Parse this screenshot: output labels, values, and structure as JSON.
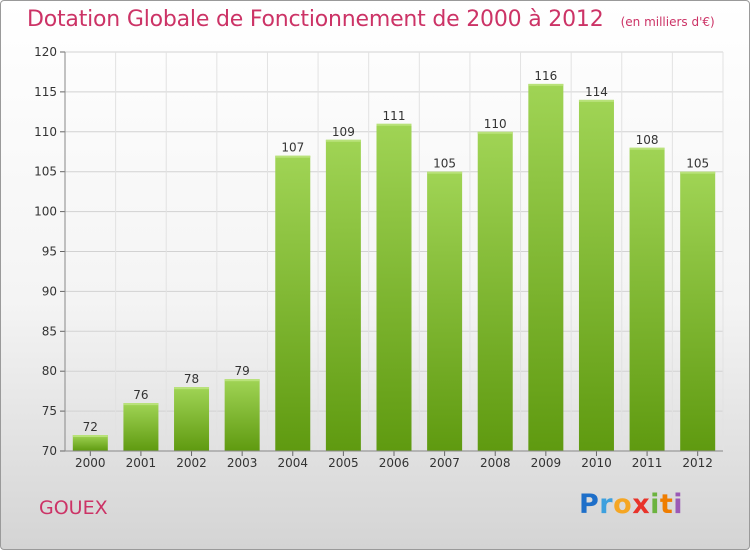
{
  "header": {
    "title": "Dotation Globale de Fonctionnement de 2000 à 2012",
    "unit": "(en milliers d'€)"
  },
  "footer": {
    "commune": "GOUEX",
    "logo_letters": [
      "P",
      "r",
      "o",
      "x",
      "i",
      "t",
      "i"
    ]
  },
  "colors": {
    "bar_light": "#a0d455",
    "bar_dark": "#5f9a10",
    "title": "#cc3366"
  },
  "chart_data": {
    "type": "bar",
    "title": "Dotation Globale de Fonctionnement de 2000 à 2012",
    "subtitle": "(en milliers d'€)",
    "categories": [
      "2000",
      "2001",
      "2002",
      "2003",
      "2004",
      "2005",
      "2006",
      "2007",
      "2008",
      "2009",
      "2010",
      "2011",
      "2012"
    ],
    "values": [
      72,
      76,
      78,
      79,
      107,
      109,
      111,
      105,
      110,
      116,
      114,
      108,
      105
    ],
    "ylim": [
      70,
      120
    ],
    "yticks": [
      70,
      75,
      80,
      85,
      90,
      95,
      100,
      105,
      110,
      115,
      120
    ],
    "grid": true,
    "legend": "none"
  }
}
